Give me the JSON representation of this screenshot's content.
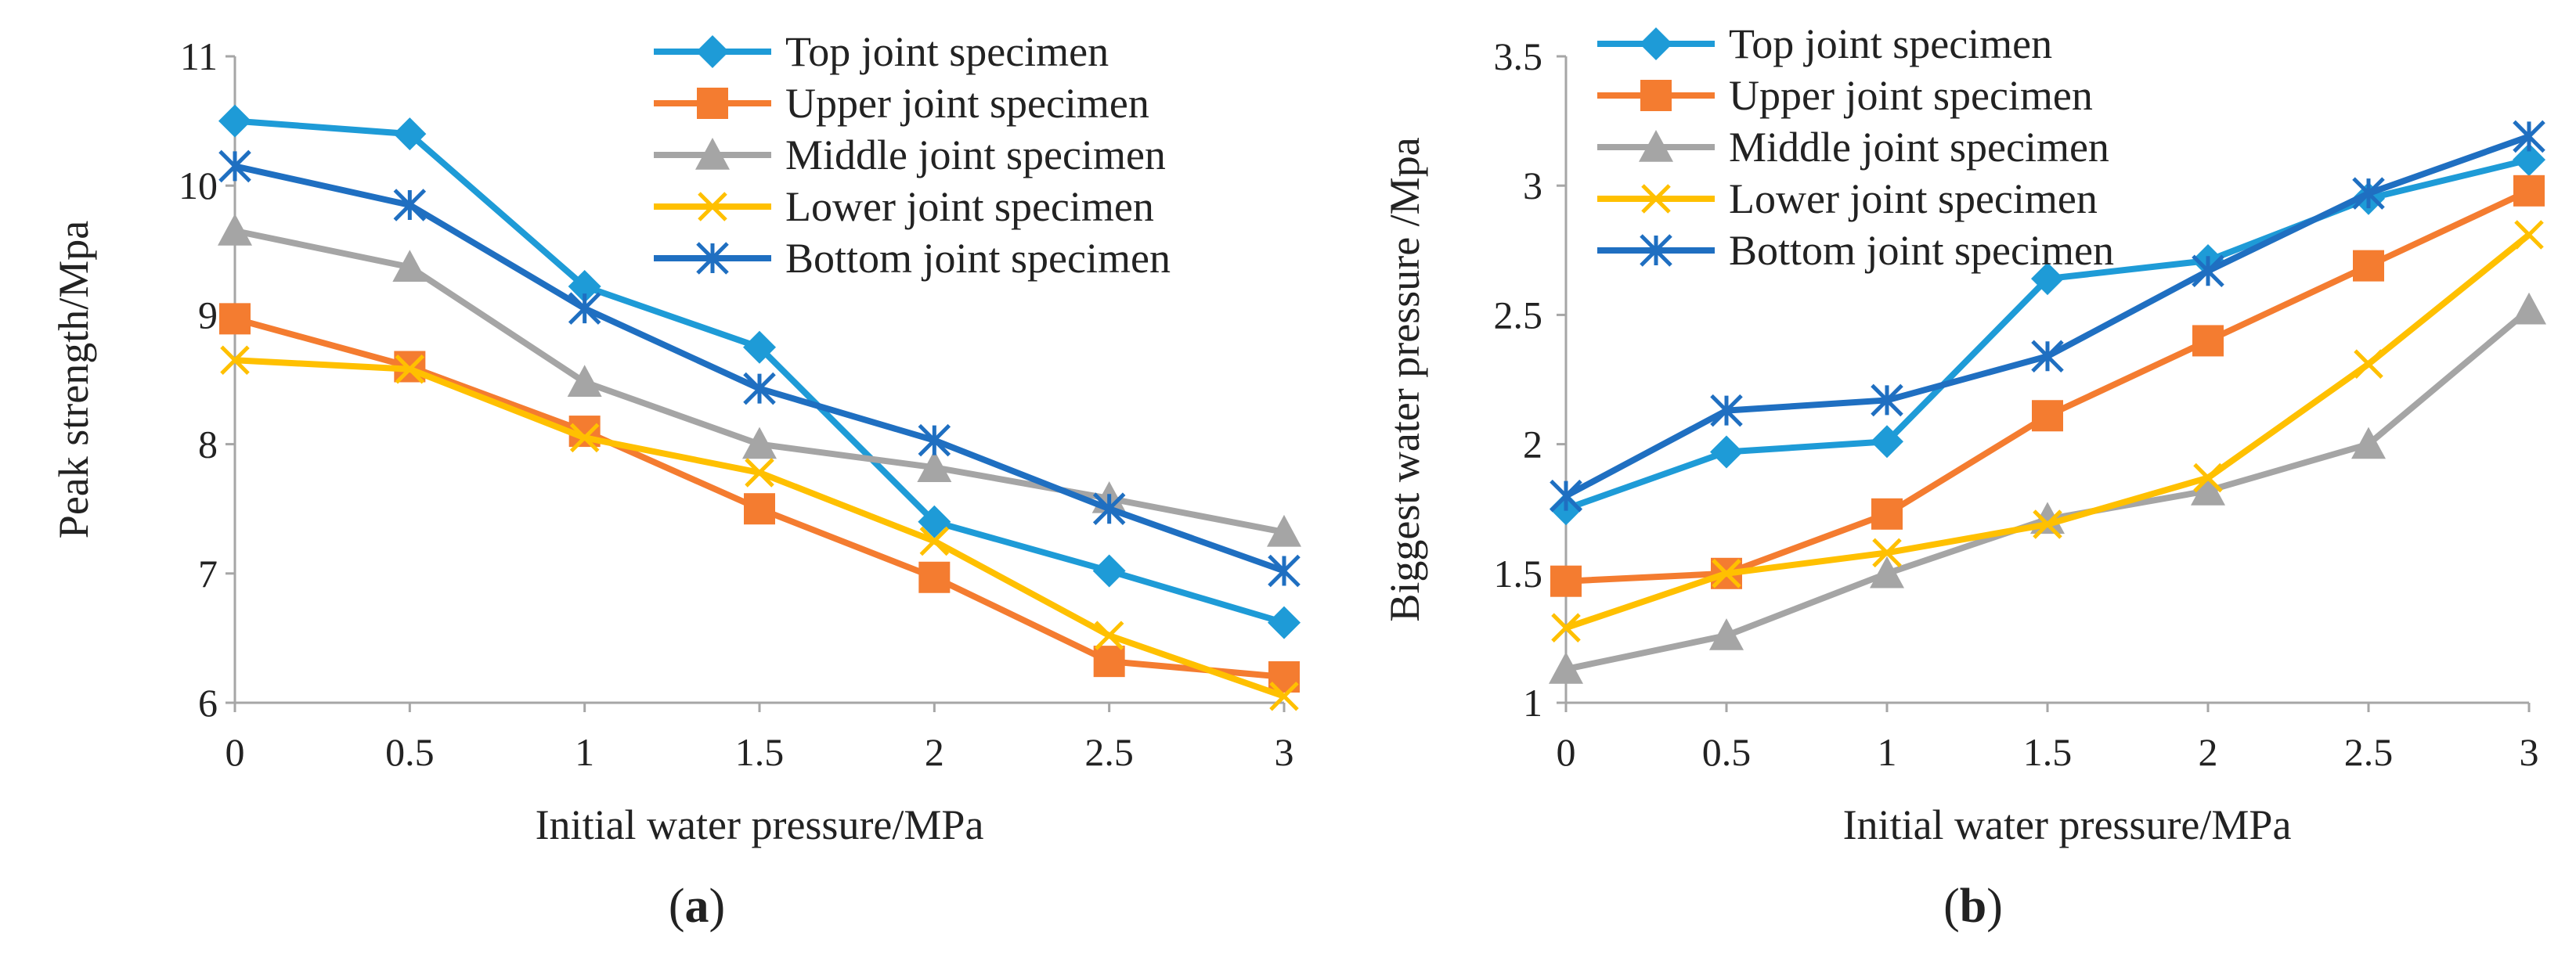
{
  "colors": {
    "top": "#1E9BD7",
    "upper": "#F47C30",
    "middle": "#A5A5A5",
    "lower": "#FFC000",
    "bottom": "#1F6FC1"
  },
  "chart_data": [
    {
      "type": "line",
      "panel_label": "a",
      "xlabel": "Initial water pressure/MPa",
      "ylabel": "Peak strength/Mpa",
      "x": [
        0,
        0.5,
        1,
        1.5,
        2,
        2.5,
        3
      ],
      "x_tick_labels": [
        "0",
        "0.5",
        "1",
        "1.5",
        "2",
        "2.5",
        "3"
      ],
      "ylim": [
        6,
        11
      ],
      "y_ticks": [
        6,
        7,
        8,
        9,
        10,
        11
      ],
      "y_tick_labels": [
        "6",
        "7",
        "8",
        "9",
        "10",
        "11"
      ],
      "legend_position": "top-right",
      "series": [
        {
          "name": "Top joint specimen",
          "color_key": "top",
          "marker": "diamond",
          "values": [
            10.5,
            10.4,
            9.22,
            8.75,
            7.4,
            7.02,
            6.62
          ]
        },
        {
          "name": "Upper joint specimen",
          "color_key": "upper",
          "marker": "square",
          "values": [
            8.97,
            8.6,
            8.1,
            7.5,
            6.97,
            6.32,
            6.2
          ]
        },
        {
          "name": "Middle joint specimen",
          "color_key": "middle",
          "marker": "triangle",
          "values": [
            9.65,
            9.37,
            8.48,
            8.0,
            7.82,
            7.58,
            7.32
          ]
        },
        {
          "name": "Lower joint specimen",
          "color_key": "lower",
          "marker": "x",
          "values": [
            8.65,
            8.58,
            8.05,
            7.78,
            7.25,
            6.52,
            6.05
          ]
        },
        {
          "name": "Bottom joint specimen",
          "color_key": "bottom",
          "marker": "asterisk",
          "values": [
            10.15,
            9.85,
            9.05,
            8.43,
            8.03,
            7.5,
            7.02
          ]
        }
      ]
    },
    {
      "type": "line",
      "panel_label": "b",
      "xlabel": "Initial water pressure/MPa",
      "ylabel": "Biggest water pressure /Mpa",
      "x": [
        0,
        0.5,
        1,
        1.5,
        2,
        2.5,
        3
      ],
      "x_tick_labels": [
        "0",
        "0.5",
        "1",
        "1.5",
        "2",
        "2.5",
        "3"
      ],
      "ylim": [
        1,
        3.5
      ],
      "y_ticks": [
        1,
        1.5,
        2,
        2.5,
        3,
        3.5
      ],
      "y_tick_labels": [
        "1",
        "1.5",
        "2",
        "2.5",
        "3",
        "3.5"
      ],
      "legend_position": "top-left",
      "series": [
        {
          "name": "Top joint specimen",
          "color_key": "top",
          "marker": "diamond",
          "values": [
            1.75,
            1.97,
            2.01,
            2.64,
            2.71,
            2.95,
            3.1
          ]
        },
        {
          "name": "Upper joint specimen",
          "color_key": "upper",
          "marker": "square",
          "values": [
            1.47,
            1.5,
            1.73,
            2.11,
            2.4,
            2.69,
            2.98
          ]
        },
        {
          "name": "Middle joint specimen",
          "color_key": "middle",
          "marker": "triangle",
          "values": [
            1.13,
            1.26,
            1.5,
            1.71,
            1.82,
            2.0,
            2.52
          ]
        },
        {
          "name": "Lower joint specimen",
          "color_key": "lower",
          "marker": "x",
          "values": [
            1.29,
            1.5,
            1.58,
            1.69,
            1.87,
            2.31,
            2.81
          ]
        },
        {
          "name": "Bottom joint specimen",
          "color_key": "bottom",
          "marker": "asterisk",
          "values": [
            1.8,
            2.13,
            2.17,
            2.34,
            2.67,
            2.97,
            3.19
          ]
        }
      ]
    }
  ]
}
